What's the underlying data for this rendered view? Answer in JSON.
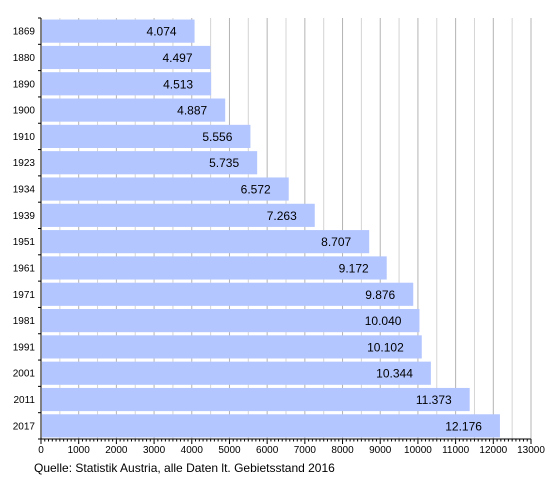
{
  "chart_data": {
    "type": "bar",
    "orientation": "horizontal",
    "categories": [
      "1869",
      "1880",
      "1890",
      "1900",
      "1910",
      "1923",
      "1934",
      "1939",
      "1951",
      "1961",
      "1971",
      "1981",
      "1991",
      "2001",
      "2011",
      "2017"
    ],
    "values": [
      4074,
      4497,
      4513,
      4887,
      5556,
      5735,
      6572,
      7263,
      8707,
      9172,
      9876,
      10040,
      10102,
      10344,
      11373,
      12176
    ],
    "value_labels": [
      "4.074",
      "4.497",
      "4.513",
      "4.887",
      "5.556",
      "5.735",
      "6.572",
      "7.263",
      "8.707",
      "9.172",
      "9.876",
      "10.040",
      "10.102",
      "10.344",
      "11.373",
      "12.176"
    ],
    "xlim": [
      0,
      13000
    ],
    "xticks": [
      "0",
      "1000",
      "2000",
      "3000",
      "4000",
      "5000",
      "6000",
      "7000",
      "8000",
      "9000",
      "10000",
      "11000",
      "12000",
      "13000"
    ],
    "grid": "vertical",
    "bar_color": "#b3c6ff",
    "title": "",
    "xlabel": "",
    "ylabel": ""
  },
  "source_note": "Quelle: Statistik Austria, alle Daten lt. Gebietsstand 2016"
}
